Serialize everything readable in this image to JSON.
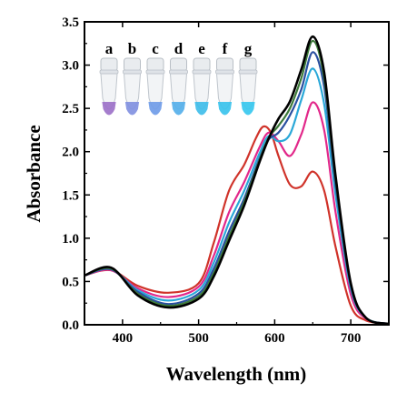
{
  "chart_data": {
    "type": "line",
    "title": "",
    "xlabel": "Wavelength (nm)",
    "ylabel": "Absorbance",
    "xlim": [
      350,
      750
    ],
    "ylim": [
      0.0,
      3.5
    ],
    "x_ticks": [
      "400",
      "500",
      "600",
      "700"
    ],
    "y_ticks": [
      "0.0",
      "0.5",
      "1.0",
      "1.5",
      "2.0",
      "2.5",
      "3.0",
      "3.5"
    ],
    "grid": false,
    "legend": "none",
    "inset": {
      "description": "photo of tube vials",
      "labels": [
        "a",
        "b",
        "c",
        "d",
        "e",
        "f",
        "g"
      ],
      "solution_colors": [
        "#9b6fc8",
        "#7f8fe0",
        "#6d9ae8",
        "#52aeea",
        "#3cbcea",
        "#36c2ec",
        "#34c6ee"
      ]
    },
    "series": [
      {
        "color": "#d0332a",
        "x": [
          350,
          385,
          420,
          460,
          500,
          520,
          540,
          560,
          575,
          585,
          595,
          605,
          620,
          635,
          650,
          665,
          680,
          700,
          720,
          750
        ],
        "y": [
          0.57,
          0.63,
          0.45,
          0.37,
          0.48,
          0.95,
          1.55,
          1.85,
          2.15,
          2.29,
          2.22,
          1.95,
          1.62,
          1.6,
          1.77,
          1.55,
          0.9,
          0.22,
          0.05,
          0.01
        ]
      },
      {
        "color": "#e2288a",
        "x": [
          350,
          385,
          420,
          460,
          500,
          520,
          540,
          560,
          580,
          592,
          605,
          620,
          635,
          650,
          665,
          680,
          700,
          720,
          750
        ],
        "y": [
          0.57,
          0.63,
          0.42,
          0.32,
          0.44,
          0.8,
          1.3,
          1.65,
          2.05,
          2.22,
          2.12,
          1.95,
          2.2,
          2.57,
          2.25,
          1.3,
          0.35,
          0.07,
          0.01
        ]
      },
      {
        "color": "#2aa8d8",
        "x": [
          350,
          385,
          420,
          460,
          500,
          520,
          540,
          560,
          580,
          592,
          605,
          620,
          635,
          650,
          665,
          680,
          700,
          720,
          750
        ],
        "y": [
          0.57,
          0.64,
          0.4,
          0.28,
          0.4,
          0.72,
          1.18,
          1.55,
          1.98,
          2.18,
          2.12,
          2.2,
          2.6,
          2.96,
          2.55,
          1.5,
          0.42,
          0.08,
          0.01
        ]
      },
      {
        "color": "#2a4fa0",
        "x": [
          350,
          385,
          420,
          460,
          500,
          520,
          540,
          560,
          580,
          592,
          605,
          620,
          635,
          650,
          665,
          680,
          700,
          720,
          750
        ],
        "y": [
          0.57,
          0.64,
          0.38,
          0.24,
          0.36,
          0.65,
          1.08,
          1.46,
          1.92,
          2.14,
          2.22,
          2.42,
          2.72,
          3.15,
          2.75,
          1.62,
          0.45,
          0.08,
          0.01
        ]
      },
      {
        "color": "#3d7a3a",
        "x": [
          350,
          385,
          420,
          460,
          500,
          520,
          540,
          560,
          580,
          592,
          605,
          620,
          635,
          650,
          665,
          680,
          700,
          720,
          750
        ],
        "y": [
          0.57,
          0.65,
          0.36,
          0.22,
          0.33,
          0.6,
          1.02,
          1.42,
          1.9,
          2.16,
          2.3,
          2.5,
          2.85,
          3.28,
          2.85,
          1.68,
          0.47,
          0.08,
          0.01
        ]
      },
      {
        "color": "#000000",
        "x": [
          350,
          385,
          420,
          460,
          500,
          520,
          540,
          560,
          580,
          592,
          605,
          620,
          635,
          650,
          665,
          680,
          700,
          720,
          750
        ],
        "y": [
          0.57,
          0.66,
          0.34,
          0.2,
          0.3,
          0.56,
          0.97,
          1.38,
          1.88,
          2.15,
          2.38,
          2.58,
          2.95,
          3.33,
          2.92,
          1.72,
          0.48,
          0.08,
          0.01
        ]
      }
    ]
  }
}
